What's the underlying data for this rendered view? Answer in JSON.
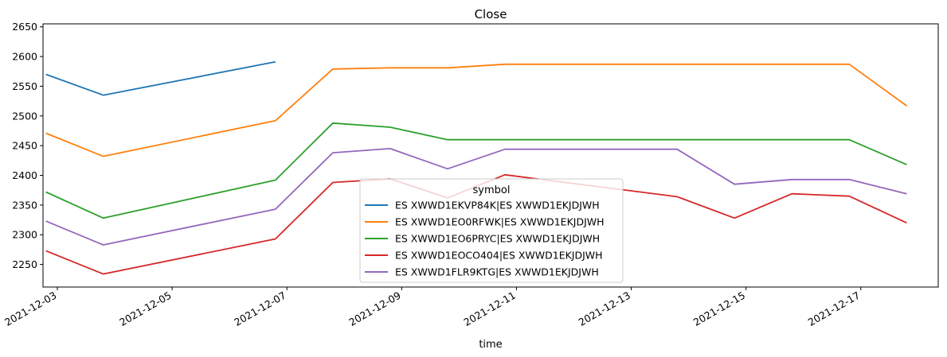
{
  "chart_data": {
    "type": "line",
    "title": "Close",
    "xlabel": "time",
    "ylabel": "",
    "legend_title": "symbol",
    "legend_position": "center-bottom",
    "ylim": [
      2212,
      2655
    ],
    "yticks": [
      2250,
      2300,
      2350,
      2400,
      2450,
      2500,
      2550,
      2600,
      2650
    ],
    "xlim_days": [
      -0.25,
      15.35
    ],
    "xticks": [
      {
        "day": 0.0,
        "label": "2021-12-03"
      },
      {
        "day": 2.0,
        "label": "2021-12-05"
      },
      {
        "day": 4.0,
        "label": "2021-12-07"
      },
      {
        "day": 6.0,
        "label": "2021-12-09"
      },
      {
        "day": 8.0,
        "label": "2021-12-11"
      },
      {
        "day": 10.0,
        "label": "2021-12-13"
      },
      {
        "day": 12.0,
        "label": "2021-12-15"
      },
      {
        "day": 14.0,
        "label": "2021-12-17"
      }
    ],
    "x": [
      -0.2,
      0.8,
      3.8,
      4.8,
      5.8,
      6.8,
      7.8,
      10.8,
      11.8,
      12.8,
      13.8,
      14.8
    ],
    "series": [
      {
        "name": "ES XWWD1EKVP84K|ES XWWD1EKJDJWH",
        "color": "#1f77b4",
        "values": [
          2570,
          2535,
          2591,
          null,
          null,
          null,
          null,
          null,
          null,
          null,
          null,
          null
        ]
      },
      {
        "name": "ES XWWD1EO0RFWK|ES XWWD1EKJDJWH",
        "color": "#ff7f0e",
        "values": [
          2471,
          2432,
          2492,
          2579,
          2581,
          2581,
          2587,
          2587,
          2587,
          2587,
          2587,
          2517
        ]
      },
      {
        "name": "ES XWWD1EO6PRYC|ES XWWD1EKJDJWH",
        "color": "#2ca02c",
        "values": [
          2372,
          2328,
          2392,
          2488,
          2481,
          2460,
          2460,
          2460,
          2460,
          2460,
          2460,
          2418
        ]
      },
      {
        "name": "ES XWWD1EOCO404|ES XWWD1EKJDJWH",
        "color": "#d62728",
        "values": [
          2273,
          2234,
          2293,
          2388,
          2394,
          2362,
          2401,
          2364,
          2328,
          2369,
          2365,
          2320
        ]
      },
      {
        "name": "ES XWWD1FLR9KTG|ES XWWD1EKJDJWH",
        "color": "#9467bd",
        "values": [
          2323,
          2283,
          2343,
          2438,
          2445,
          2411,
          2444,
          2444,
          2385,
          2393,
          2393,
          2369
        ]
      }
    ]
  }
}
